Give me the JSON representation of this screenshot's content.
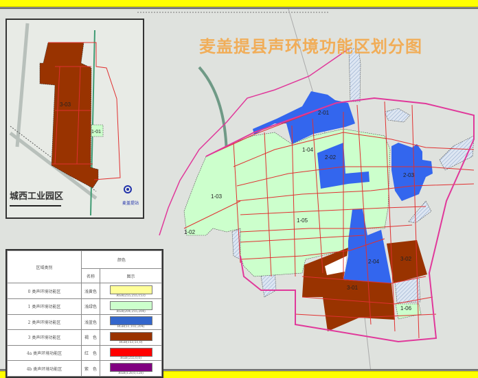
{
  "title": "麦盖提县声环境功能区划分图",
  "inset": {
    "title": "城西工业园区",
    "station_label": "麦盖提站",
    "zones": [
      "3-03",
      "1-01"
    ]
  },
  "map": {
    "zones": {
      "z101": "1-02",
      "z103": "1-03",
      "z104": "1-04",
      "z105": "1-05",
      "z106": "1-06",
      "z201": "2-01",
      "z202": "2-02",
      "z203": "2-03",
      "z204": "2-04",
      "z301": "3-01",
      "z302": "3-02"
    },
    "colors": {
      "zone1": "#ccffcc",
      "zone2": "#3366cc",
      "zone3": "#993300",
      "zone4a": "#ff0000",
      "zone4b": "#800080",
      "boundary": "#e0389a"
    }
  },
  "legend": {
    "header_category": "区域类别",
    "header_color": "颜色",
    "header_name": "名称",
    "header_swatch": "图示",
    "rows": [
      {
        "category": "0 类声环境功能区",
        "name": "浅黄色",
        "rgb": "RGB(255,255,153)",
        "color": "#ffff99"
      },
      {
        "category": "1 类声环境功能区",
        "name": "浅绿色",
        "rgb": "RGB(204,255,204)",
        "color": "#ccffcc"
      },
      {
        "category": "2 类声环境功能区",
        "name": "浅蓝色",
        "rgb": "RGB(51,102,204)",
        "color": "#3366cc"
      },
      {
        "category": "3 类声环境功能区",
        "name": "褐　色",
        "rgb": "RGB(153,51,0)",
        "color": "#993300"
      },
      {
        "category": "4a 类声环境功能区",
        "name": "红　色",
        "rgb": "RGB(255,0,0)",
        "color": "#ff0000"
      },
      {
        "category": "4b 类声环境功能区",
        "name": "紫　色",
        "rgb": "RGB(128,0,128)",
        "color": "#800080"
      }
    ]
  }
}
